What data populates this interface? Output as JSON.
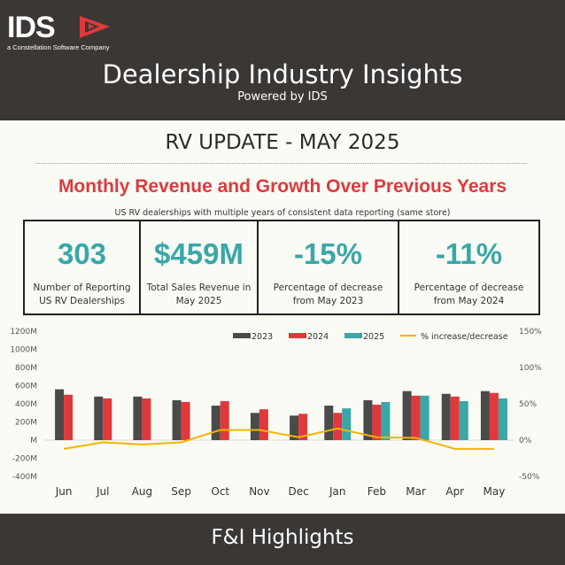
{
  "header": {
    "logo_word": "IDS",
    "logo_sub": "a Constellation Software Company",
    "title": "Dealership Industry Insights",
    "subtitle": "Powered by IDS"
  },
  "update_title": "RV UPDATE - MAY 2025",
  "section": {
    "title": "Monthly Revenue and Growth Over Previous Years",
    "subtitle": "US RV dealerships with multiple years of consistent data reporting (same store)"
  },
  "kpis": [
    {
      "value": "303",
      "label": "Number of Reporting\nUS RV Dealerships"
    },
    {
      "value": "$459M",
      "label": "Total Sales Revenue in\nMay 2025"
    },
    {
      "value": "-15%",
      "label": "Percentage of decrease\nfrom May 2023"
    },
    {
      "value": "-11%",
      "label": "Percentage of decrease\nfrom May 2024"
    }
  ],
  "colors": {
    "brand_red": "#e0393c",
    "teal": "#3aa7a8",
    "dark": "#3b3735",
    "s2023": "#4a4a4a",
    "s2024": "#e0393c",
    "s2025": "#3aa7a8",
    "line": "#f2b400"
  },
  "chart_data": {
    "type": "bar",
    "categories": [
      "Jun",
      "Jul",
      "Aug",
      "Sep",
      "Oct",
      "Nov",
      "Dec",
      "Jan",
      "Feb",
      "Mar",
      "Apr",
      "May"
    ],
    "series": [
      {
        "name": "2023",
        "values": [
          560,
          480,
          480,
          440,
          380,
          300,
          270,
          380,
          440,
          540,
          510,
          540
        ]
      },
      {
        "name": "2024",
        "values": [
          500,
          460,
          460,
          420,
          430,
          340,
          290,
          300,
          390,
          490,
          480,
          520
        ]
      },
      {
        "name": "2025",
        "values": [
          null,
          null,
          null,
          null,
          null,
          null,
          null,
          350,
          420,
          490,
          430,
          460
        ]
      }
    ],
    "line_series": {
      "name": "% increase/decrease",
      "values": [
        -12,
        -3,
        -6,
        -3,
        14,
        14,
        4,
        16,
        4,
        3,
        -12,
        -12
      ]
    },
    "y_left": {
      "ticks": [
        "1200M",
        "1000M",
        "800M",
        "600M",
        "400M",
        "200M",
        "M",
        "-200M",
        "-400M"
      ],
      "ylim": [
        -400,
        1200
      ]
    },
    "y_right": {
      "ticks": [
        "150%",
        "100%",
        "50%",
        "0%",
        "-50%"
      ],
      "ylim": [
        -50,
        150
      ]
    },
    "legend_position": "top-right"
  },
  "footer": {
    "title": "F&I Highlights"
  }
}
